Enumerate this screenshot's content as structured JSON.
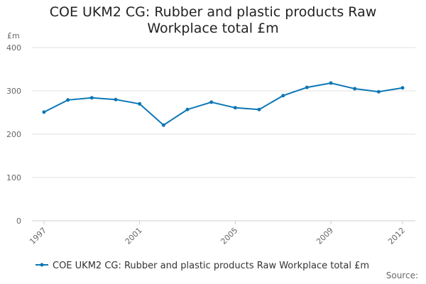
{
  "chart_data": {
    "type": "line",
    "title": "COE UKM2 CG: Rubber and plastic products Raw Workplace total £m",
    "y_label": "£m",
    "source": "Source:",
    "x": [
      1997,
      1998,
      1999,
      2000,
      2001,
      2002,
      2003,
      2004,
      2005,
      2006,
      2007,
      2008,
      2009,
      2010,
      2011,
      2012
    ],
    "xlim": [
      1997,
      2012
    ],
    "xticks": [
      1997,
      2001,
      2005,
      2009,
      2012
    ],
    "ylim": [
      0,
      400
    ],
    "yticks": [
      0,
      100,
      200,
      300,
      400
    ],
    "grid": true,
    "series": [
      {
        "name": "COE UKM2 CG: Rubber and plastic products Raw Workplace total £m",
        "color": "#0b77b5",
        "values": [
          251,
          279,
          284,
          280,
          270,
          221,
          257,
          274,
          261,
          257,
          289,
          308,
          318,
          305,
          298,
          307
        ]
      }
    ]
  }
}
